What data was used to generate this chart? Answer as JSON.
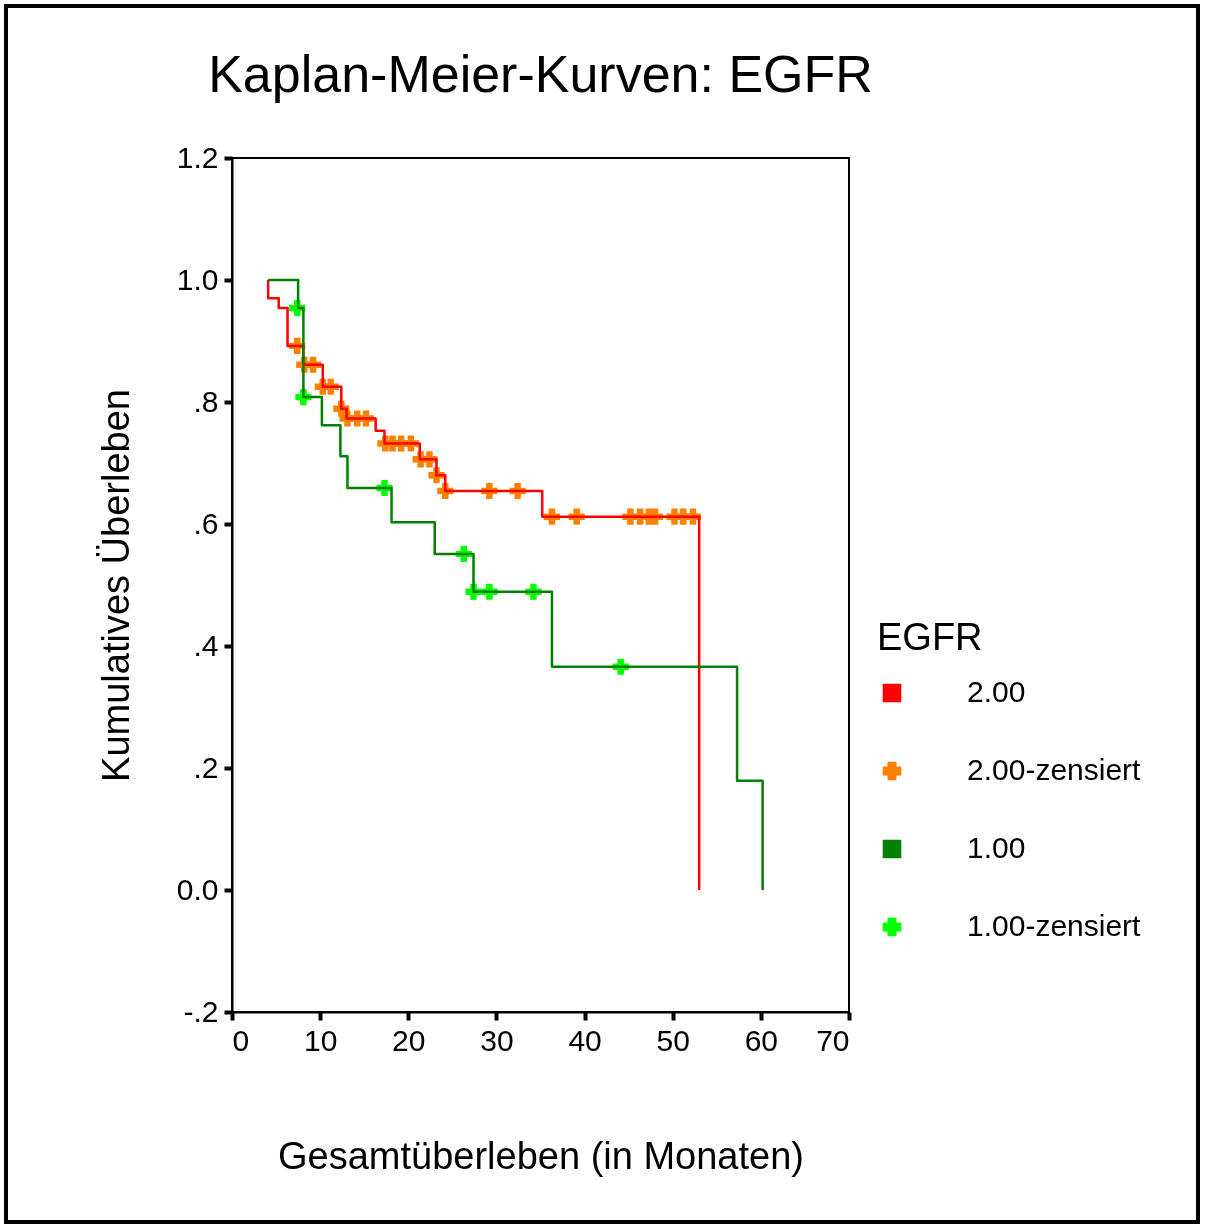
{
  "chart_data": {
    "type": "step",
    "title": "Kaplan-Meier-Kurven: EGFR",
    "xlabel": "Gesamtüberleben (in Monaten)",
    "ylabel": "Kumulatives Überleben",
    "legend_title": "EGFR",
    "legend": "right",
    "grid": false,
    "xlim": [
      0,
      70
    ],
    "xticks": [
      0,
      10,
      20,
      30,
      40,
      50,
      60,
      70
    ],
    "ylim": [
      -0.2,
      1.2
    ],
    "yticks": [
      {
        "value": -0.2,
        "label": "-.2"
      },
      {
        "value": 0,
        "label": "0.0"
      },
      {
        "value": 0.2,
        "label": ".2"
      },
      {
        "value": 0.4,
        "label": ".4"
      },
      {
        "value": 0.6,
        "label": ".6"
      },
      {
        "value": 0.8,
        "label": ".8"
      },
      {
        "value": 1,
        "label": "1.0"
      },
      {
        "value": 1.2,
        "label": "1.2"
      }
    ],
    "series": [
      {
        "name": "2.00",
        "type": "step",
        "color": "#ff0000",
        "x": [
          4.1,
          4.1,
          5.3,
          6.3,
          8.1,
          10.3,
          12.4,
          13.0,
          16.3,
          17.3,
          21.3,
          23.2,
          24.2,
          35.2,
          53.0
        ],
        "values": [
          1.0,
          0.97,
          0.954,
          0.892,
          0.861,
          0.825,
          0.789,
          0.773,
          0.753,
          0.732,
          0.706,
          0.68,
          0.654,
          0.612,
          0
        ]
      },
      {
        "name": "2.00-zensiert",
        "type": "scatter",
        "marker": "cross",
        "color": "#ff8000",
        "x": [
          7.4,
          8.2,
          9.2,
          10.3,
          11.2,
          12.4,
          13.1,
          14.2,
          15.2,
          17.4,
          18.2,
          19.2,
          20.3,
          21.4,
          22.4,
          23.2,
          24.2,
          29.2,
          32.4,
          36.3,
          39.1,
          45.2,
          46.3,
          47.3,
          48.0,
          50.2,
          51.2,
          52.3
        ],
        "values": [
          0.892,
          0.861,
          0.861,
          0.825,
          0.825,
          0.789,
          0.773,
          0.773,
          0.773,
          0.732,
          0.732,
          0.732,
          0.732,
          0.706,
          0.706,
          0.68,
          0.654,
          0.654,
          0.654,
          0.612,
          0.612,
          0.612,
          0.612,
          0.612,
          0.612,
          0.612,
          0.612,
          0.612
        ]
      },
      {
        "name": "1.00",
        "type": "step",
        "color": "#008000",
        "x": [
          4.1,
          7.5,
          8.1,
          10.2,
          12.3,
          13.1,
          18.1,
          23.0,
          27.4,
          36.3,
          57.3,
          60.2
        ],
        "values": [
          1.0,
          0.954,
          0.808,
          0.762,
          0.711,
          0.659,
          0.603,
          0.551,
          0.489,
          0.366,
          0.179,
          0
        ]
      },
      {
        "name": "1.00-zensiert",
        "type": "scatter",
        "marker": "cross",
        "color": "#00ff00",
        "x": [
          7.4,
          8.1,
          17.3,
          26.3,
          27.4,
          29.2,
          34.2,
          44.1
        ],
        "values": [
          0.954,
          0.808,
          0.659,
          0.551,
          0.489,
          0.489,
          0.489,
          0.366
        ]
      }
    ]
  }
}
